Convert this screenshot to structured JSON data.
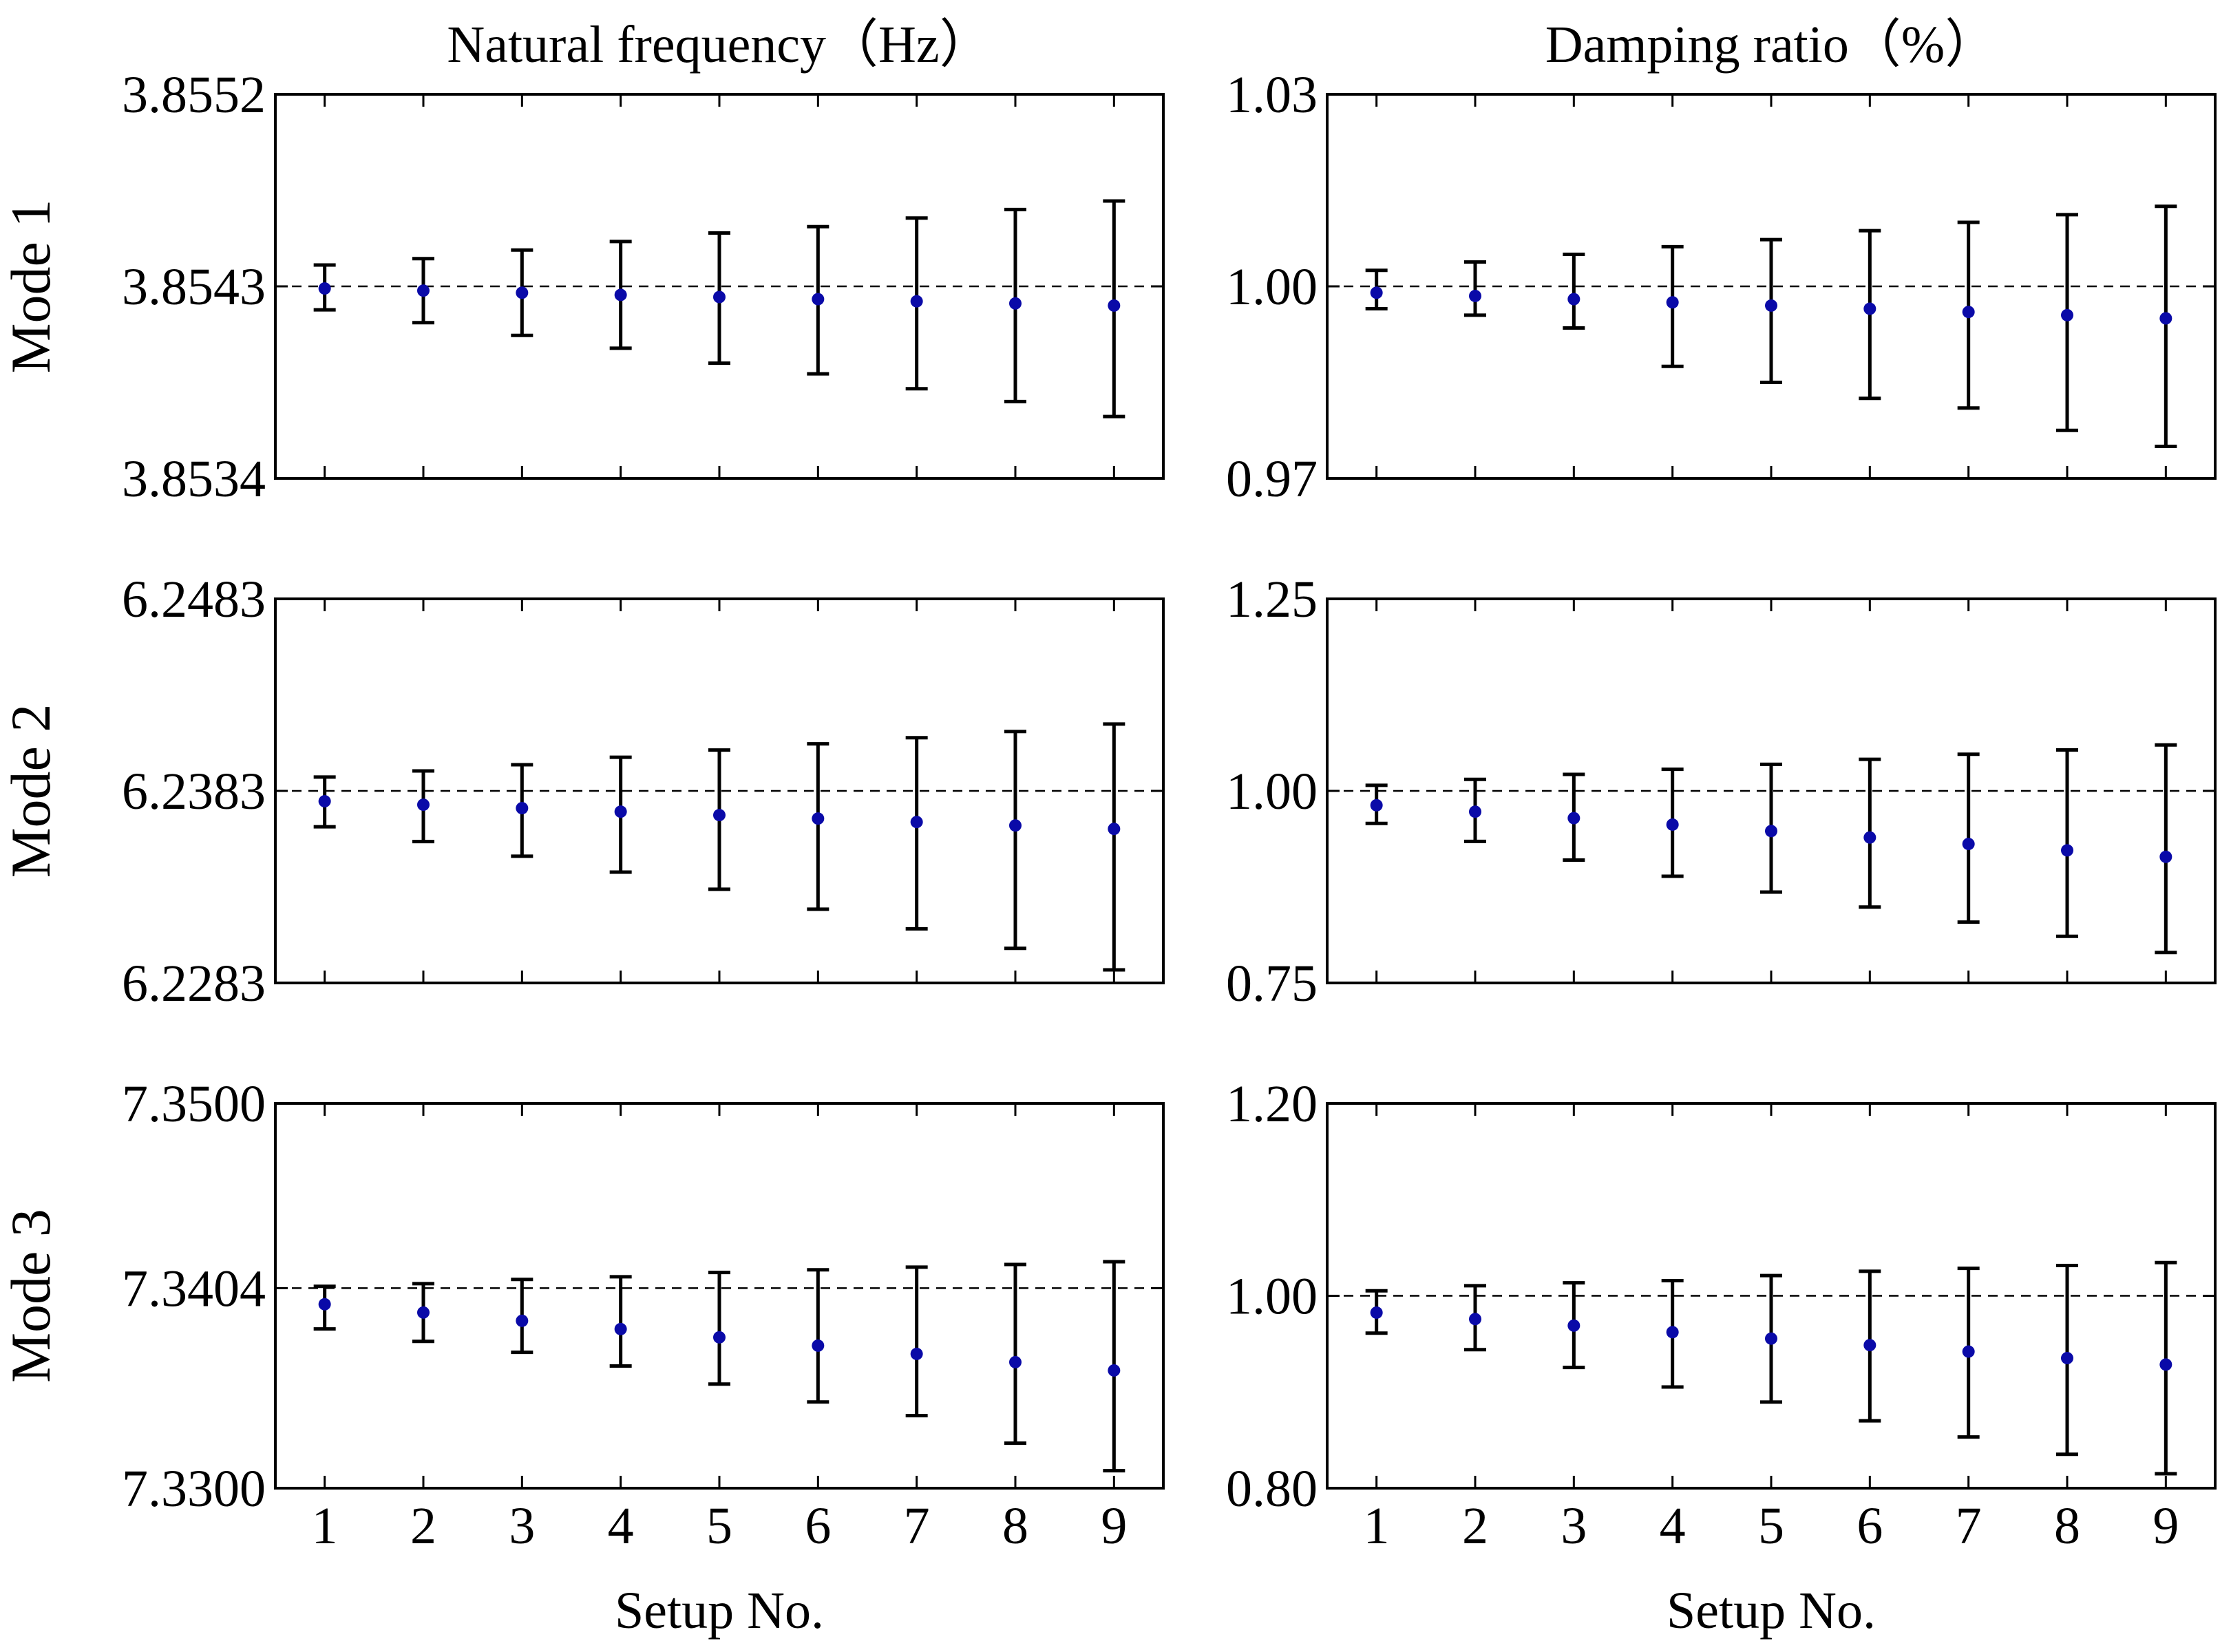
{
  "column_titles": [
    "Natural frequency（Hz）",
    "Damping ratio（%）"
  ],
  "row_labels": [
    "Mode 1",
    "Mode 2",
    "Mode 3"
  ],
  "x_axis_label": "Setup No.",
  "colors": {
    "point": "#0a0aa8",
    "errorbar": "#000000",
    "reference": "#000000"
  },
  "chart_data": [
    {
      "type": "scatter",
      "name": "mode1-frequency",
      "title": "Natural frequency（Hz）",
      "ylabel": "Mode 1",
      "xlabel": "",
      "x": [
        1,
        2,
        3,
        4,
        5,
        6,
        7,
        8,
        9
      ],
      "y": [
        3.85429,
        3.85428,
        3.85427,
        3.85426,
        3.85425,
        3.85424,
        3.85423,
        3.85422,
        3.85421
      ],
      "err_low": [
        3.85419,
        3.85413,
        3.85407,
        3.85401,
        3.85394,
        3.85389,
        3.85382,
        3.85376,
        3.85369
      ],
      "err_high": [
        3.8544,
        3.85443,
        3.85447,
        3.85451,
        3.85455,
        3.85458,
        3.85462,
        3.85466,
        3.8547
      ],
      "reference": 3.8543,
      "yticks": [
        "3.8534",
        "3.8543",
        "3.8552"
      ],
      "ylim": [
        3.8534,
        3.8552
      ],
      "xlim": [
        0.5,
        9.5
      ],
      "xticks": []
    },
    {
      "type": "scatter",
      "name": "mode1-damping",
      "title": "Damping ratio（%）",
      "ylabel": "",
      "xlabel": "",
      "x": [
        1,
        2,
        3,
        4,
        5,
        6,
        7,
        8,
        9
      ],
      "y": [
        0.999,
        0.9985,
        0.998,
        0.9975,
        0.997,
        0.9965,
        0.996,
        0.9955,
        0.995
      ],
      "err_low": [
        0.9965,
        0.9955,
        0.9935,
        0.9875,
        0.985,
        0.9825,
        0.981,
        0.9775,
        0.975
      ],
      "err_high": [
        1.0025,
        1.0038,
        1.005,
        1.0062,
        1.0073,
        1.0087,
        1.01,
        1.0112,
        1.0125
      ],
      "reference": 1.0,
      "yticks": [
        "0.97",
        "1.00",
        "1.03"
      ],
      "ylim": [
        0.97,
        1.03
      ],
      "xlim": [
        0.5,
        9.5
      ],
      "xticks": []
    },
    {
      "type": "scatter",
      "name": "mode2-frequency",
      "title": "",
      "ylabel": "Mode 2",
      "xlabel": "",
      "x": [
        1,
        2,
        3,
        4,
        5,
        6,
        7,
        8,
        9
      ],
      "y": [
        6.23776,
        6.23758,
        6.2374,
        6.23722,
        6.23704,
        6.23686,
        6.23668,
        6.2365,
        6.23632
      ],
      "err_low": [
        6.23643,
        6.23566,
        6.2349,
        6.23407,
        6.23318,
        6.23214,
        6.23112,
        6.2301,
        6.22898
      ],
      "err_high": [
        6.23902,
        6.23934,
        6.23966,
        6.24005,
        6.24043,
        6.24075,
        6.24107,
        6.24139,
        6.24178
      ],
      "reference": 6.2383,
      "yticks": [
        "6.2283",
        "6.2383",
        "6.2483"
      ],
      "ylim": [
        6.2283,
        6.2483
      ],
      "xlim": [
        0.5,
        9.5
      ],
      "xticks": []
    },
    {
      "type": "scatter",
      "name": "mode2-damping",
      "title": "",
      "ylabel": "",
      "xlabel": "",
      "x": [
        1,
        2,
        3,
        4,
        5,
        6,
        7,
        8,
        9
      ],
      "y": [
        0.9813,
        0.9729,
        0.9645,
        0.9561,
        0.9477,
        0.9393,
        0.9309,
        0.9226,
        0.9142
      ],
      "err_low": [
        0.9577,
        0.9343,
        0.91,
        0.8889,
        0.8683,
        0.8488,
        0.8292,
        0.8107,
        0.7897
      ],
      "err_high": [
        1.0073,
        1.015,
        1.0215,
        1.0281,
        1.0346,
        1.0411,
        1.0477,
        1.0533,
        1.0598
      ],
      "reference": 1.0,
      "yticks": [
        "0.75",
        "1.00",
        "1.25"
      ],
      "ylim": [
        0.75,
        1.25
      ],
      "xlim": [
        0.5,
        9.5
      ],
      "xticks": []
    },
    {
      "type": "scatter",
      "name": "mode3-frequency",
      "title": "",
      "ylabel": "Mode 3",
      "xlabel": "Setup No.",
      "x": [
        1,
        2,
        3,
        4,
        5,
        6,
        7,
        8,
        9
      ],
      "y": [
        7.33956,
        7.33913,
        7.3387,
        7.33827,
        7.33784,
        7.33741,
        7.33698,
        7.33655,
        7.33612
      ],
      "err_low": [
        7.33828,
        7.33763,
        7.33706,
        7.33635,
        7.33541,
        7.33448,
        7.33377,
        7.33234,
        7.33091
      ],
      "err_high": [
        7.34049,
        7.34063,
        7.34085,
        7.34099,
        7.34121,
        7.34135,
        7.34149,
        7.34163,
        7.34177
      ],
      "reference": 7.3404,
      "yticks": [
        "7.3300",
        "7.3404",
        "7.3500"
      ],
      "ylim": [
        7.33,
        7.35
      ],
      "xlim": [
        0.5,
        9.5
      ],
      "xticks": [
        "1",
        "2",
        "3",
        "4",
        "5",
        "6",
        "7",
        "8",
        "9"
      ]
    },
    {
      "type": "scatter",
      "name": "mode3-damping",
      "title": "",
      "ylabel": "",
      "xlabel": "Setup No.",
      "x": [
        1,
        2,
        3,
        4,
        5,
        6,
        7,
        8,
        9
      ],
      "y": [
        0.9825,
        0.9758,
        0.969,
        0.9622,
        0.9555,
        0.9487,
        0.942,
        0.9352,
        0.9285
      ],
      "err_low": [
        0.9612,
        0.944,
        0.9255,
        0.9052,
        0.8895,
        0.87,
        0.8532,
        0.8352,
        0.815
      ],
      "err_high": [
        1.0052,
        1.0105,
        1.0135,
        1.0157,
        1.021,
        1.0255,
        1.0285,
        1.0315,
        1.0345
      ],
      "reference": 1.0,
      "yticks": [
        "0.80",
        "1.00",
        "1.20"
      ],
      "ylim": [
        0.8,
        1.2
      ],
      "xlim": [
        0.5,
        9.5
      ],
      "xticks": [
        "1",
        "2",
        "3",
        "4",
        "5",
        "6",
        "7",
        "8",
        "9"
      ]
    }
  ]
}
